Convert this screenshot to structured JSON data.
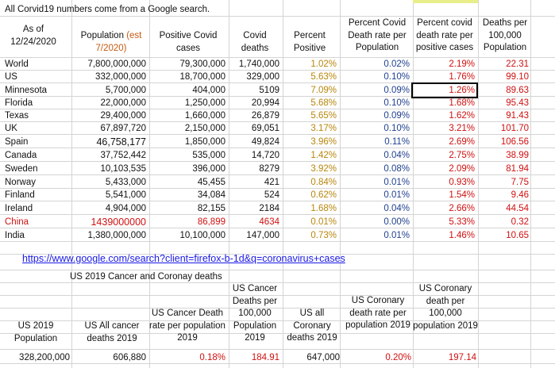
{
  "note": "All Corvid19 numbers come from a Google search.",
  "asof": "As of 12/24/2020",
  "headers": {
    "population_a": "Population",
    "population_b": "(est 7/2020)",
    "positive": "Positive Covid cases",
    "deaths": "Covid deaths",
    "pct_positive": "Percent Positive",
    "pct_death_pop": "Percent Covid Death rate per Population",
    "pct_death_pos": "Percent covid death rate per positive cases",
    "per100k": "Deaths per 100,000 Population"
  },
  "rows": [
    {
      "name": "World",
      "pop": "7,800,000,000",
      "pos": "79,300,000",
      "deaths": "1,740,000",
      "pp": "1.02%",
      "dp": "0.02%",
      "dpc": "2.19%",
      "k": "22.31"
    },
    {
      "name": "US",
      "pop": "332,000,000",
      "pos": "18,700,000",
      "deaths": "329,000",
      "pp": "5.63%",
      "dp": "0.10%",
      "dpc": "1.76%",
      "k": "99.10"
    },
    {
      "name": "Minnesota",
      "pop": "5,700,000",
      "pos": "404,000",
      "deaths": "5109",
      "pp": "7.09%",
      "dp": "0.09%",
      "dpc": "1.26%",
      "k": "89.63"
    },
    {
      "name": "Florida",
      "pop": "22,000,000",
      "pos": "1,250,000",
      "deaths": "20,994",
      "pp": "5.68%",
      "dp": "0.10%",
      "dpc": "1.68%",
      "k": "95.43"
    },
    {
      "name": "Texas",
      "pop": "29,400,000",
      "pos": "1,660,000",
      "deaths": "26,879",
      "pp": "5.65%",
      "dp": "0.09%",
      "dpc": "1.62%",
      "k": "91.43"
    },
    {
      "name": "UK",
      "pop": "67,897,720",
      "pos": "2,150,000",
      "deaths": "69,051",
      "pp": "3.17%",
      "dp": "0.10%",
      "dpc": "3.21%",
      "k": "101.70"
    },
    {
      "name": "Spain",
      "pop": "46,758,177",
      "pos": "1,850,000",
      "deaths": "49,824",
      "pp": "3.96%",
      "dp": "0.11%",
      "dpc": "2.69%",
      "k": "106.56"
    },
    {
      "name": "Canada",
      "pop": "37,752,442",
      "pos": "535,000",
      "deaths": "14,720",
      "pp": "1.42%",
      "dp": "0.04%",
      "dpc": "2.75%",
      "k": "38.99"
    },
    {
      "name": "Sweden",
      "pop": "10,103,535",
      "pos": "396,000",
      "deaths": "8279",
      "pp": "3.92%",
      "dp": "0.08%",
      "dpc": "2.09%",
      "k": "81.94"
    },
    {
      "name": "Norway",
      "pop": "5,433,000",
      "pos": "45,455",
      "deaths": "421",
      "pp": "0.84%",
      "dp": "0.01%",
      "dpc": "0.93%",
      "k": "7.75"
    },
    {
      "name": "Finland",
      "pop": "5,541,000",
      "pos": "34,084",
      "deaths": "524",
      "pp": "0.62%",
      "dp": "0.01%",
      "dpc": "1.54%",
      "k": "9.46"
    },
    {
      "name": "Ireland",
      "pop": "4,904,000",
      "pos": "82,155",
      "deaths": "2184",
      "pp": "1.68%",
      "dp": "0.04%",
      "dpc": "2.66%",
      "k": "44.54"
    },
    {
      "name": "China",
      "pop": "1439000000",
      "pos": "86,899",
      "deaths": "4634",
      "pp": "0.01%",
      "dp": "0.00%",
      "dpc": "5.33%",
      "k": "0.32"
    },
    {
      "name": "India",
      "pop": "1,380,000,000",
      "pos": "10,100,000",
      "deaths": "147,000",
      "pp": "0.73%",
      "dp": "0.01%",
      "dpc": "1.46%",
      "k": "10.65"
    }
  ],
  "link": "https://www.google.com/search?client=firefox-b-1d&q=coronavirus+cases",
  "cancer_title": "US 2019 Cancer and Coronay deaths",
  "cancer_headers": {
    "pop": "US 2019 Population",
    "cancer": "US All cancer deaths 2019",
    "cancer_rate": "US Cancer Death rate per population 2019",
    "cancer_100k": "US Cancer Deaths per 100,000 Population 2019",
    "coronary": "US all Coronary deaths 2019",
    "coronary_rate": "US Coronary death rate per population 2019",
    "coronary_100k": "US Coronary death per 100,000 population 2019"
  },
  "cancer_values": {
    "pop": "328,200,000",
    "cancer": "606,880",
    "cancer_rate": "0.18%",
    "cancer_100k": "184.91",
    "coronary": "647,000",
    "coronary_rate": "0.20%",
    "coronary_100k": "197.14"
  }
}
